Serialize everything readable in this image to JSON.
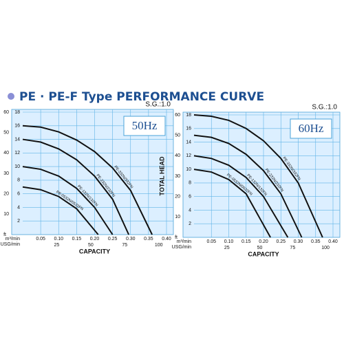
{
  "header": {
    "title": "PE · PE-F Type PERFORMANCE CURVE"
  },
  "chart_data": [
    {
      "type": "line",
      "title": "50Hz",
      "subtitle": "S.G.:1.0",
      "ylabel": "TOTAL HEAD",
      "xlabel": "CAPACITY",
      "xunit": "m³/min",
      "x2unit": "USG/min",
      "y2unit": "ft",
      "xlim": [
        0,
        0.4
      ],
      "xticks": [
        0.05,
        {
          "value": 0.1,
          "label": "0.10"
        },
        0.15,
        {
          "value": 0.2,
          "label": "0.20"
        },
        0.25,
        {
          "value": 0.3,
          "label": "0.30"
        },
        0.35,
        {
          "value": 0.4,
          "label": "0.40"
        }
      ],
      "x2lim": [
        0,
        105.7
      ],
      "x2ticks": [
        25,
        50,
        75,
        100
      ],
      "ylim": [
        0,
        18
      ],
      "yticks": [
        2,
        4,
        6,
        8,
        10,
        12,
        14,
        16,
        18
      ],
      "y2lim": [
        0,
        60
      ],
      "y2ticks": [
        10,
        20,
        30,
        40,
        50,
        60
      ],
      "grid": true,
      "series": [
        {
          "name": "PE-332N/332FN",
          "color": "#111111",
          "x": [
            0,
            0.05,
            0.1,
            0.15,
            0.2,
            0.25,
            0.3,
            0.36
          ],
          "values": [
            16,
            15.8,
            15.1,
            13.9,
            12.2,
            9.8,
            6.5,
            0
          ]
        },
        {
          "name": "PE-232N/232FN",
          "color": "#111111",
          "x": [
            0,
            0.05,
            0.1,
            0.15,
            0.2,
            0.25,
            0.295
          ],
          "values": [
            14,
            13.6,
            12.6,
            11,
            8.6,
            5.2,
            0
          ]
        },
        {
          "name": "PE-132N/132FN",
          "color": "#111111",
          "x": [
            0,
            0.05,
            0.1,
            0.15,
            0.2,
            0.25
          ],
          "values": [
            10,
            9.6,
            8.6,
            6.8,
            4,
            0
          ]
        },
        {
          "name": "PE-0532N/0532FN",
          "color": "#111111",
          "x": [
            0,
            0.05,
            0.1,
            0.15,
            0.21
          ],
          "values": [
            7,
            6.6,
            5.6,
            3.8,
            0
          ]
        }
      ]
    },
    {
      "type": "line",
      "title": "60Hz",
      "subtitle": "S.G.:1.0",
      "ylabel": "TOTAL HEAD",
      "xlabel": "CAPACITY",
      "xunit": "m³/min",
      "x2unit": "USG/min",
      "y2unit": "ft",
      "xlim": [
        0,
        0.4
      ],
      "xticks": [
        0.05,
        {
          "value": 0.1,
          "label": "0.10"
        },
        0.15,
        {
          "value": 0.2,
          "label": "0.20"
        },
        0.25,
        {
          "value": 0.3,
          "label": "0.30"
        },
        0.35,
        {
          "value": 0.4,
          "label": "0.40"
        }
      ],
      "x2lim": [
        0,
        105.7
      ],
      "x2ticks": [
        25,
        50,
        75,
        100
      ],
      "ylim": [
        0,
        18
      ],
      "yticks": [
        2,
        4,
        6,
        8,
        10,
        12,
        14,
        16,
        18
      ],
      "y2lim": [
        0,
        60
      ],
      "y2ticks": [
        10,
        20,
        30,
        40,
        50,
        60
      ],
      "grid": true,
      "series": [
        {
          "name": "PE-332N/332FN",
          "color": "#111111",
          "x": [
            0,
            0.05,
            0.1,
            0.15,
            0.2,
            0.25,
            0.3,
            0.37
          ],
          "values": [
            18,
            17.8,
            17.2,
            16,
            14.2,
            11.6,
            8,
            0
          ]
        },
        {
          "name": "PE-232N/232FN",
          "color": "#111111",
          "x": [
            0,
            0.05,
            0.1,
            0.15,
            0.2,
            0.25,
            0.31
          ],
          "values": [
            15,
            14.7,
            13.8,
            12.2,
            9.8,
            6.4,
            0
          ]
        },
        {
          "name": "PE-132N/132FN",
          "color": "#111111",
          "x": [
            0,
            0.05,
            0.1,
            0.15,
            0.2,
            0.27
          ],
          "values": [
            12,
            11.6,
            10.6,
            8.8,
            6,
            0
          ]
        },
        {
          "name": "PE-0532N/0532FN",
          "color": "#111111",
          "x": [
            0,
            0.05,
            0.1,
            0.15,
            0.22
          ],
          "values": [
            10,
            9.6,
            8.5,
            6.4,
            0
          ]
        }
      ]
    }
  ]
}
